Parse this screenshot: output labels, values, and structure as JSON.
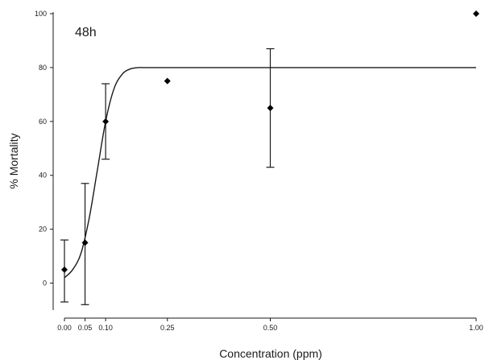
{
  "chart_data": {
    "type": "scatter",
    "annotation": "48h",
    "xlabel": "Concentration (ppm)",
    "ylabel": "% Mortality",
    "xlim": [
      0,
      1
    ],
    "ylim": [
      -10,
      100
    ],
    "x_ticks": [
      0.0,
      0.05,
      0.1,
      0.25,
      0.5,
      1.0
    ],
    "x_tick_labels": [
      "0.00",
      "0.05",
      "0.10",
      "0.25",
      "0.50",
      "1.00"
    ],
    "y_ticks": [
      0,
      20,
      40,
      60,
      80,
      100
    ],
    "y_tick_labels": [
      "0",
      "20",
      "40",
      "60",
      "80",
      "100"
    ],
    "grid": false,
    "points": [
      {
        "x": 0.0,
        "y": 5,
        "err_low": -7,
        "err_high": 16
      },
      {
        "x": 0.05,
        "y": 15,
        "err_low": -8,
        "err_high": 37
      },
      {
        "x": 0.1,
        "y": 60,
        "err_low": 46,
        "err_high": 74
      },
      {
        "x": 0.25,
        "y": 75
      },
      {
        "x": 0.5,
        "y": 65,
        "err_low": 43,
        "err_high": 87
      },
      {
        "x": 1.0,
        "y": 100
      }
    ],
    "fit": {
      "type": "sigmoid",
      "x": [
        0.0,
        0.02,
        0.04,
        0.06,
        0.08,
        0.1,
        0.12,
        0.14,
        0.16,
        0.18,
        0.2,
        0.3,
        0.5,
        1.0
      ],
      "y": [
        2,
        5,
        11,
        24,
        42,
        60,
        72,
        77.5,
        79.5,
        80,
        80,
        80,
        80,
        80
      ]
    }
  }
}
